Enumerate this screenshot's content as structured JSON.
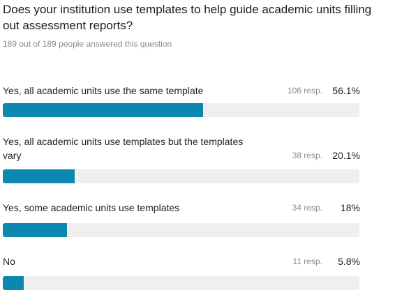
{
  "question": {
    "title": "Does your institution use templates to help guide academic units filling out assessment reports?",
    "answered": "189 out of 189 people answered this question"
  },
  "colors": {
    "bar_fill": "#0c87b0",
    "bar_track": "#efefef"
  },
  "options": [
    {
      "label": "Yes, all academic units use the same template",
      "responses": "106 resp.",
      "percent": "56.1%",
      "fraction": 0.561
    },
    {
      "label": "Yes, all academic units use templates but the templates vary",
      "responses": "38 resp.",
      "percent": "20.1%",
      "fraction": 0.201
    },
    {
      "label": "Yes, some academic units use templates",
      "responses": "34 resp.",
      "percent": "18%",
      "fraction": 0.18
    },
    {
      "label": "No",
      "responses": "11 resp.",
      "percent": "5.8%",
      "fraction": 0.058
    }
  ]
}
